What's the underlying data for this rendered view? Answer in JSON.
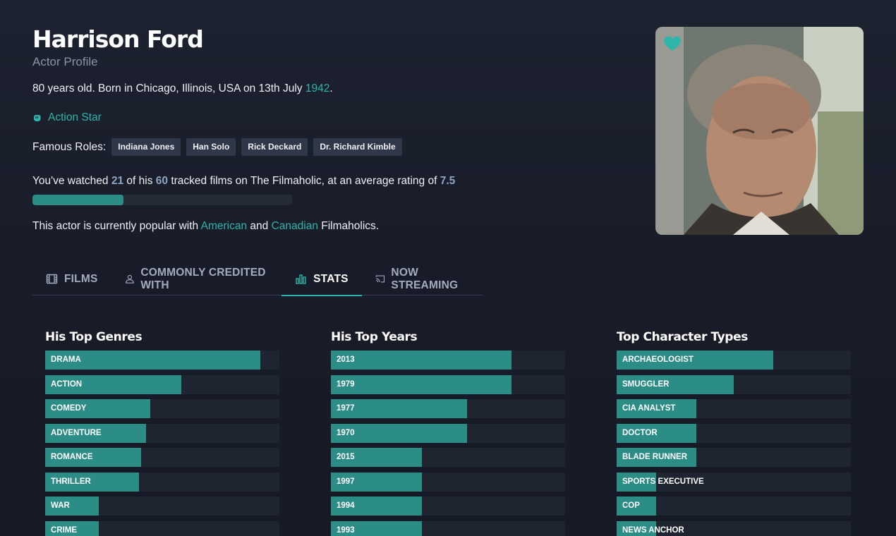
{
  "actor": {
    "name": "Harrison Ford",
    "subtitle": "Actor Profile",
    "bio_prefix": "80 years old. Born in Chicago, Illinois, USA on 13th July ",
    "birth_year": "1942",
    "bio_suffix": ".",
    "badge": "Action Star",
    "famous_roles_label": "Famous Roles:",
    "famous_roles": [
      "Indiana Jones",
      "Han Solo",
      "Rick Deckard",
      "Dr. Richard Kimble"
    ]
  },
  "watched": {
    "prefix": "You've watched ",
    "count": "21",
    "mid1": " of his ",
    "total": "60",
    "mid2": " tracked films on The Filmaholic, at an average rating of ",
    "rating": "7.5",
    "progress_fraction": 0.35
  },
  "popular": {
    "prefix": "This actor is currently popular with ",
    "country1": "American",
    "and": " and ",
    "country2": "Canadian",
    "suffix": " Filmaholics."
  },
  "tabs": [
    {
      "label": "FILMS",
      "icon": "film-icon"
    },
    {
      "label": "COMMONLY CREDITED WITH",
      "icon": "people-icon"
    },
    {
      "label": "STATS",
      "icon": "bar-chart-icon",
      "active": true
    },
    {
      "label": "NOW STREAMING",
      "icon": "cast-icon"
    }
  ],
  "colors": {
    "accent": "#2cb5a8",
    "bar": "#2c8c86",
    "background": "#1a1e2a"
  },
  "stats": [
    {
      "title": "His Top Genres",
      "items": [
        {
          "label": "DRAMA",
          "value": 0.92
        },
        {
          "label": "ACTION",
          "value": 0.58
        },
        {
          "label": "COMEDY",
          "value": 0.45
        },
        {
          "label": "ADVENTURE",
          "value": 0.43
        },
        {
          "label": "ROMANCE",
          "value": 0.41
        },
        {
          "label": "THRILLER",
          "value": 0.4
        },
        {
          "label": "WAR",
          "value": 0.23
        },
        {
          "label": "CRIME",
          "value": 0.23
        }
      ]
    },
    {
      "title": "His Top Years",
      "items": [
        {
          "label": "2013",
          "value": 0.77
        },
        {
          "label": "1979",
          "value": 0.77
        },
        {
          "label": "1977",
          "value": 0.58
        },
        {
          "label": "1970",
          "value": 0.58
        },
        {
          "label": "2015",
          "value": 0.39
        },
        {
          "label": "1997",
          "value": 0.39
        },
        {
          "label": "1994",
          "value": 0.39
        },
        {
          "label": "1993",
          "value": 0.39
        }
      ]
    },
    {
      "title": "Top Character Types",
      "items": [
        {
          "label": "ARCHAEOLOGIST",
          "value": 0.67
        },
        {
          "label": "SMUGGLER",
          "value": 0.5
        },
        {
          "label": "CIA ANALYST",
          "value": 0.34
        },
        {
          "label": "DOCTOR",
          "value": 0.34
        },
        {
          "label": "BLADE RUNNER",
          "value": 0.34
        },
        {
          "label": "SPORTS EXECUTIVE",
          "value": 0.17
        },
        {
          "label": "COP",
          "value": 0.17
        },
        {
          "label": "NEWS ANCHOR",
          "value": 0.17
        }
      ]
    }
  ]
}
